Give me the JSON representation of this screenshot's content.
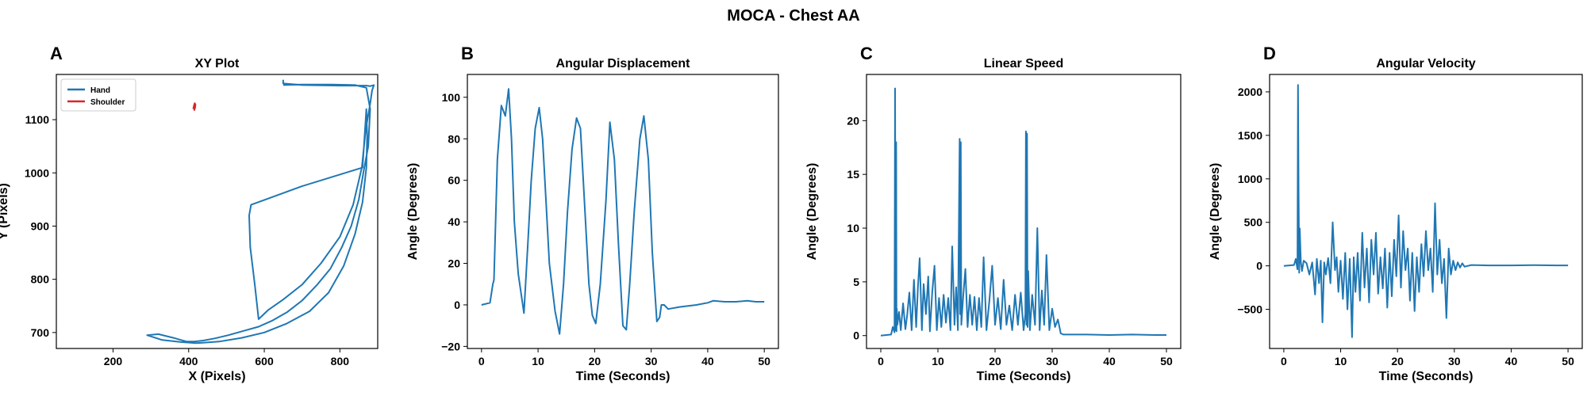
{
  "figure": {
    "suptitle": "MOCA - Chest AA"
  },
  "colors": {
    "series_blue": "#1f77b4",
    "series_red": "#d62728",
    "axis": "#000000"
  },
  "chart_data": [
    {
      "panel": "A",
      "type": "line",
      "title": "XY Plot",
      "xlabel": "X (Pixels)",
      "ylabel": "Y (Pixels)",
      "xlim": [
        50,
        900
      ],
      "ylim": [
        670,
        1185
      ],
      "xticks": [
        200,
        400,
        600,
        800
      ],
      "yticks": [
        700,
        800,
        900,
        1000,
        1100
      ],
      "legend": {
        "position": "top-left",
        "entries": [
          "Hand",
          "Shoulder"
        ]
      },
      "series": [
        {
          "name": "Hand",
          "color": "#1f77b4",
          "x": [
            650,
            700,
            780,
            840,
            870,
            880,
            875,
            862,
            850,
            830,
            805,
            775,
            740,
            700,
            660,
            620,
            585,
            545,
            505,
            470,
            440,
            415,
            395,
            380,
            360,
            320,
            290,
            330,
            380,
            420,
            480,
            540,
            600,
            660,
            720,
            770,
            810,
            840,
            860,
            870,
            872,
            870,
            860,
            700,
            565,
            560,
            563,
            575,
            585,
            610,
            650,
            700,
            750,
            800,
            835,
            858,
            868,
            880,
            885,
            890,
            880,
            870,
            800,
            700,
            650,
            650
          ],
          "y": [
            1165,
            1166,
            1166,
            1165,
            1160,
            1120,
            1050,
            1000,
            950,
            900,
            860,
            820,
            790,
            760,
            738,
            722,
            711,
            703,
            695,
            689,
            685,
            683,
            683,
            686,
            690,
            697,
            695,
            686,
            682,
            680,
            683,
            690,
            700,
            717,
            740,
            775,
            825,
            885,
            945,
            1010,
            1070,
            1120,
            1010,
            975,
            940,
            920,
            860,
            790,
            725,
            742,
            762,
            790,
            830,
            880,
            940,
            1010,
            1080,
            1130,
            1155,
            1165,
            1163,
            1164,
            1164,
            1165,
            1168,
            1175
          ]
        },
        {
          "name": "Shoulder",
          "color": "#d62728",
          "x": [
            412,
            414,
            416,
            418,
            417,
            415,
            416,
            418
          ],
          "y": [
            1120,
            1126,
            1131,
            1128,
            1123,
            1118,
            1124,
            1130
          ]
        }
      ]
    },
    {
      "panel": "B",
      "type": "line",
      "title": "Angular Displacement",
      "xlabel": "Time (Seconds)",
      "ylabel": "Angle (Degrees)",
      "xlim": [
        -2.5,
        52.5
      ],
      "ylim": [
        -21,
        111
      ],
      "xticks": [
        0,
        10,
        20,
        30,
        40,
        50
      ],
      "yticks": [
        -20,
        0,
        20,
        40,
        60,
        80,
        100
      ],
      "series": [
        {
          "name": "",
          "color": "#1f77b4",
          "x": [
            0,
            1.5,
            2,
            2.2,
            2.8,
            3.5,
            4.2,
            4.8,
            5.3,
            5.8,
            6.5,
            7.5,
            8.2,
            8.8,
            9.5,
            10.2,
            10.8,
            11.4,
            12,
            13,
            13.8,
            14.5,
            15.2,
            16,
            16.8,
            17.5,
            18.2,
            19,
            19.6,
            20.2,
            21,
            22,
            22.7,
            23.5,
            24.2,
            25,
            25.6,
            26.2,
            27,
            28,
            28.7,
            29.5,
            30.2,
            31,
            31.5,
            31.8,
            32.3,
            33,
            35,
            38,
            40,
            41,
            43,
            45,
            47,
            48.5,
            50
          ],
          "y": [
            0,
            1,
            10,
            12,
            70,
            96,
            91,
            104,
            80,
            40,
            15,
            -4,
            30,
            60,
            85,
            95,
            80,
            50,
            20,
            -3,
            -14,
            10,
            45,
            75,
            90,
            85,
            50,
            10,
            -5,
            -9,
            10,
            50,
            88,
            70,
            30,
            -10,
            -12,
            10,
            45,
            80,
            91,
            70,
            25,
            -8,
            -6,
            0,
            0,
            -2,
            -1,
            0,
            1,
            2,
            1.5,
            1.5,
            2,
            1.5,
            1.5
          ]
        }
      ]
    },
    {
      "panel": "C",
      "type": "line",
      "title": "Linear Speed",
      "xlabel": "Time (Seconds)",
      "ylabel": "Angle (Degrees)",
      "xlim": [
        -2.5,
        52.5
      ],
      "ylim": [
        -1.2,
        24.3
      ],
      "xticks": [
        0,
        10,
        20,
        30,
        40,
        50
      ],
      "yticks": [
        0,
        5,
        10,
        15,
        20
      ],
      "series": [
        {
          "name": "",
          "color": "#1f77b4",
          "x": [
            0,
            1.8,
            2.1,
            2.4,
            2.5,
            2.6,
            2.7,
            2.75,
            2.8,
            2.9,
            3.2,
            3.5,
            3.9,
            4.3,
            4.6,
            5.0,
            5.4,
            5.8,
            6.2,
            6.5,
            6.8,
            7.2,
            7.5,
            7.9,
            8.3,
            8.6,
            9.0,
            9.4,
            9.8,
            10.2,
            10.6,
            11.0,
            11.4,
            11.8,
            12.2,
            12.5,
            12.9,
            13.2,
            13.5,
            13.8,
            13.9,
            14.0,
            14.1,
            14.4,
            14.8,
            15.2,
            15.6,
            16.0,
            16.4,
            16.8,
            17.2,
            17.6,
            18.0,
            18.5,
            19.0,
            19.5,
            20.0,
            20.5,
            21.0,
            21.5,
            22.0,
            22.5,
            23.0,
            23.5,
            24.0,
            24.5,
            25.0,
            25.3,
            25.4,
            25.5,
            25.6,
            25.7,
            25.8,
            26.1,
            26.5,
            27.0,
            27.4,
            27.8,
            28.2,
            28.6,
            29.0,
            29.5,
            30.0,
            30.5,
            31.0,
            31.5,
            32,
            36,
            40,
            44,
            48,
            50
          ],
          "y": [
            0,
            0.1,
            0.8,
            0.3,
            23,
            0.5,
            18,
            0.4,
            2.5,
            1.0,
            2.2,
            0.5,
            3.0,
            0.6,
            1.8,
            4.0,
            0.5,
            5.2,
            0.8,
            4.5,
            7.2,
            0.5,
            4.8,
            2.0,
            5.5,
            0.4,
            4.0,
            6.5,
            0.5,
            3.5,
            0.8,
            3.8,
            1.2,
            3.5,
            0.5,
            8.3,
            1.0,
            4.5,
            0.5,
            18.3,
            2.0,
            18.0,
            1.0,
            3.5,
            6.2,
            0.8,
            3.8,
            1.0,
            3.6,
            0.5,
            3.5,
            0.8,
            7.3,
            0.5,
            3.2,
            6.5,
            1.0,
            3.5,
            0.6,
            5.2,
            1.0,
            2.8,
            0.5,
            3.8,
            1.0,
            4.0,
            0.5,
            2.0,
            19.0,
            1.0,
            18.8,
            0.8,
            6.0,
            0.5,
            3.8,
            1.0,
            10.0,
            0.5,
            4.2,
            1.0,
            7.5,
            0.5,
            2.5,
            0.8,
            1.5,
            0.2,
            0.1,
            0.1,
            0.05,
            0.1,
            0.05,
            0.05
          ]
        }
      ]
    },
    {
      "panel": "D",
      "type": "line",
      "title": "Angular Velocity",
      "xlabel": "Time (Seconds)",
      "ylabel": "Angle (Degrees)",
      "xlim": [
        -2.5,
        52.5
      ],
      "ylim": [
        -950,
        2200
      ],
      "xticks": [
        0,
        10,
        20,
        30,
        40,
        50
      ],
      "yticks": [
        -500,
        0,
        500,
        1000,
        1500,
        2000
      ],
      "series": [
        {
          "name": "",
          "color": "#1f77b4",
          "x": [
            0,
            1.8,
            2.1,
            2.4,
            2.5,
            2.6,
            2.7,
            2.8,
            3.0,
            3.2,
            3.5,
            4.0,
            4.5,
            5.0,
            5.5,
            5.8,
            6.2,
            6.5,
            6.8,
            7.1,
            7.4,
            7.8,
            8.2,
            8.6,
            9.0,
            9.3,
            9.6,
            10.0,
            10.4,
            10.8,
            11.2,
            11.6,
            12.0,
            12.3,
            12.6,
            13.0,
            13.4,
            13.8,
            14.2,
            14.6,
            15.0,
            15.4,
            15.8,
            16.2,
            16.6,
            17.0,
            17.4,
            17.8,
            18.2,
            18.6,
            19.0,
            19.4,
            19.8,
            20.2,
            20.6,
            21.0,
            21.4,
            21.8,
            22.2,
            22.6,
            23.0,
            23.4,
            23.8,
            24.2,
            24.6,
            25.0,
            25.4,
            25.8,
            26.2,
            26.6,
            27.0,
            27.4,
            27.8,
            28.2,
            28.6,
            29.0,
            29.4,
            29.8,
            30.2,
            30.6,
            31.0,
            31.4,
            31.8,
            33,
            36,
            40,
            44,
            48,
            50
          ],
          "y": [
            0,
            10,
            80,
            -40,
            2080,
            900,
            -80,
            430,
            40,
            -60,
            60,
            30,
            -100,
            40,
            -330,
            80,
            -200,
            60,
            -650,
            40,
            -100,
            90,
            -200,
            500,
            -50,
            100,
            -300,
            60,
            -380,
            150,
            -500,
            80,
            -820,
            100,
            -300,
            150,
            -400,
            380,
            -250,
            200,
            -420,
            300,
            -100,
            380,
            -320,
            100,
            -260,
            200,
            -480,
            150,
            -350,
            300,
            -120,
            580,
            -250,
            400,
            -50,
            200,
            -400,
            150,
            -520,
            100,
            -300,
            250,
            -120,
            400,
            -50,
            200,
            -300,
            720,
            -100,
            300,
            -200,
            80,
            -600,
            200,
            -100,
            60,
            -50,
            40,
            -20,
            30,
            -10,
            10,
            5,
            5,
            8,
            5,
            5
          ]
        }
      ]
    }
  ]
}
